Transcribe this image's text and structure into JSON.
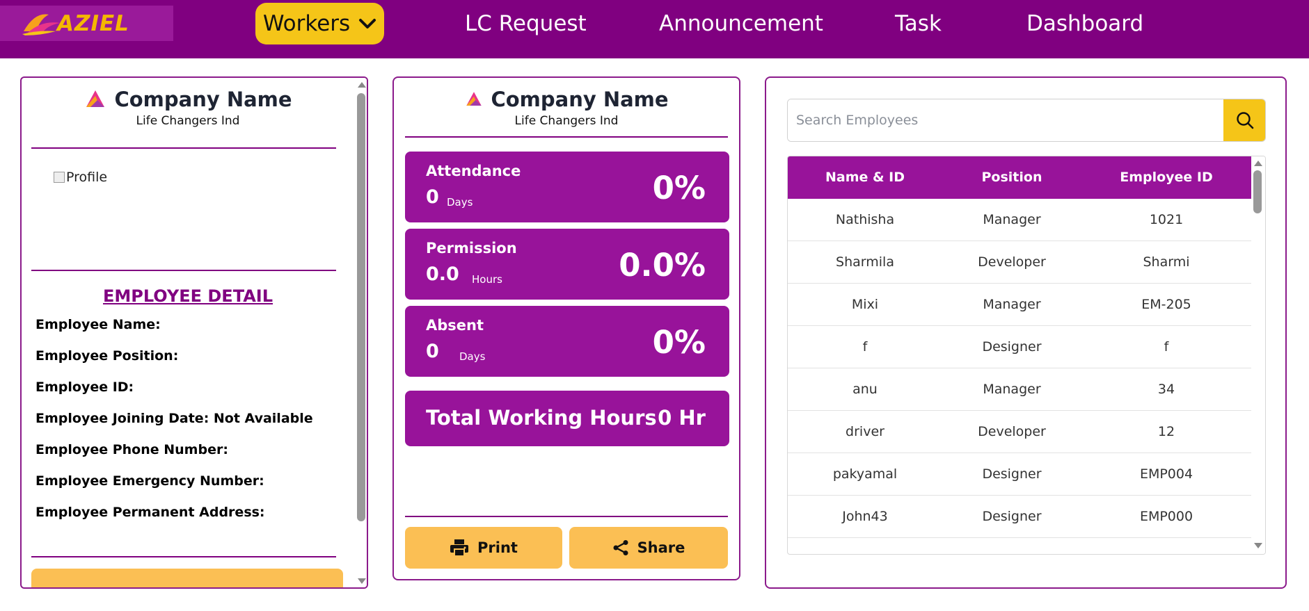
{
  "brand": {
    "logo_text": "AZIEL",
    "accent": "#800080",
    "highlight": "#f5c518",
    "button": "#fbbf54"
  },
  "nav": {
    "workers": "Workers",
    "lc_request": "LC Request",
    "announcement": "Announcement",
    "task": "Task",
    "dashboard": "Dashboard"
  },
  "left_panel": {
    "company_name": "Company Name",
    "company_sub": "Life Changers Ind",
    "profile_alt": "Profile",
    "section_title": "EMPLOYEE DETAIL",
    "fields": [
      "Employee Name:",
      "Employee Position:",
      "Employee ID:",
      "Employee Joining Date: Not Available",
      "Employee Phone Number:",
      "Employee Emergency Number:",
      "Employee Permanent Address:"
    ]
  },
  "middle_panel": {
    "company_name": "Company Name",
    "company_sub": "Life Changers Ind",
    "attendance": {
      "label": "Attendance",
      "value": "0",
      "unit": "Days",
      "percent": "0%"
    },
    "permission": {
      "label": "Permission",
      "value": "0.0",
      "unit": "Hours",
      "percent": "0.0%"
    },
    "absent": {
      "label": "Absent",
      "value": "0",
      "unit": "Days",
      "percent": "0%"
    },
    "total": {
      "label": "Total Working Hours",
      "value": "0 Hr"
    },
    "print_label": "Print",
    "share_label": "Share"
  },
  "right_panel": {
    "search_placeholder": "Search Employees",
    "columns": [
      "Name & ID",
      "Position",
      "Employee ID"
    ],
    "rows": [
      [
        "Nathisha",
        "Manager",
        "1021"
      ],
      [
        "Sharmila",
        "Developer",
        "Sharmi"
      ],
      [
        "Mixi",
        "Manager",
        "EM-205"
      ],
      [
        "f",
        "Designer",
        "f"
      ],
      [
        "anu",
        "Manager",
        "34"
      ],
      [
        "driver",
        "Developer",
        "12"
      ],
      [
        "pakyamal",
        "Designer",
        "EMP004"
      ],
      [
        "John43",
        "Designer",
        "EMP000"
      ]
    ]
  }
}
